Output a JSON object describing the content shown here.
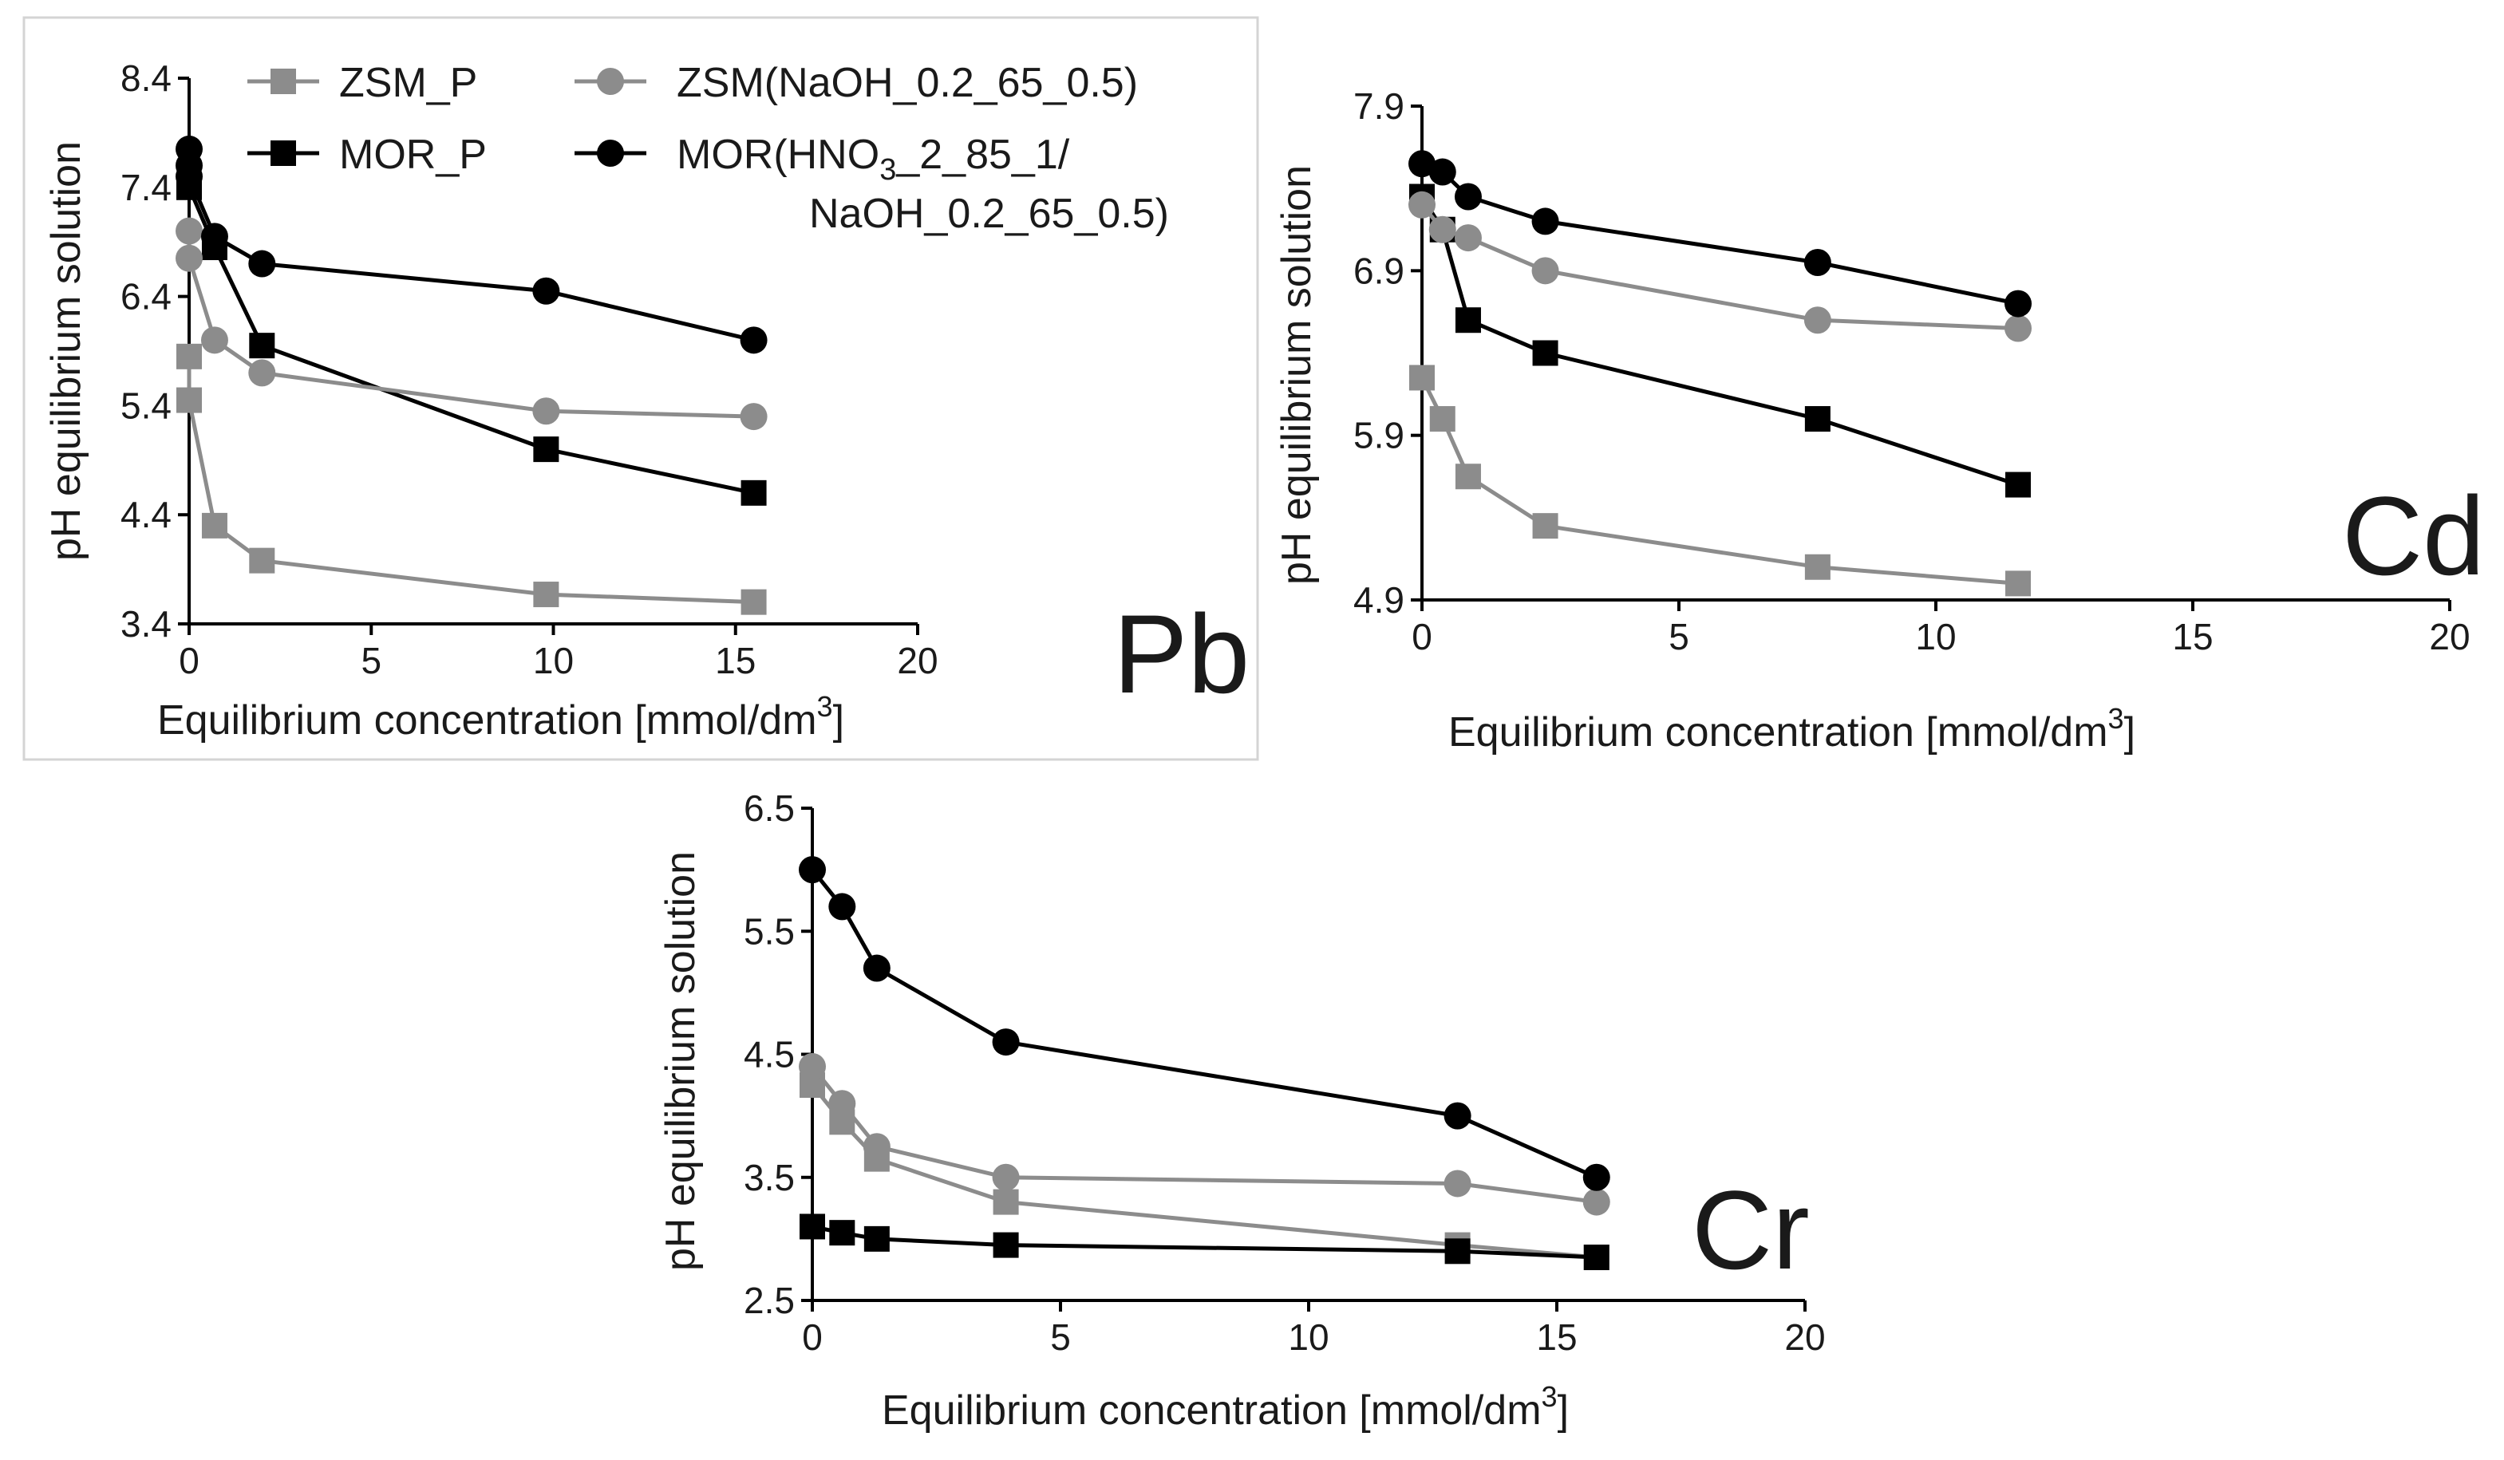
{
  "series_styles": [
    {
      "key": "zsm_p",
      "name": "ZSM_P",
      "color": "#8c8c8c",
      "marker": "square"
    },
    {
      "key": "mor_p",
      "name": "MOR_P",
      "color": "#000000",
      "marker": "square"
    },
    {
      "key": "zsm_naoh",
      "name": "ZSM(NaOH_0.2_65_0.5)",
      "color": "#8c8c8c",
      "marker": "circle"
    },
    {
      "key": "mor_hno3",
      "name": "MOR(HNO3_2_85_1/NaOH_0.2_65_0.5)",
      "color": "#000000",
      "marker": "circle"
    }
  ],
  "legend": {
    "zsm_p": "ZSM_P",
    "mor_p": "MOR_P",
    "zsm_naoh": "ZSM(NaOH_0.2_65_0.5)",
    "mor_hno3_prefix": "MOR(HNO",
    "mor_hno3_sub": "3",
    "mor_hno3_rest": "_2_85_1/",
    "mor_hno3_line2": "NaOH_0.2_65_0.5)"
  },
  "chart_data": [
    {
      "type": "line",
      "metal_label": "Pb",
      "xlabel": "Equilibrium concentration [mmol/dm",
      "xlabel_sup": "3",
      "xlabel_end": "]",
      "ylabel": "pH equilibrium solution",
      "xlim": [
        0,
        20
      ],
      "ylim": [
        3.4,
        8.4
      ],
      "xticks": [
        "0",
        "5",
        "10",
        "15",
        "20"
      ],
      "yticks": [
        "3.4",
        "4.4",
        "5.4",
        "6.4",
        "7.4",
        "8.4"
      ],
      "series": [
        {
          "key": "zsm_p",
          "x": [
            0,
            0,
            0.7,
            2.0,
            9.8,
            15.5
          ],
          "y": [
            5.85,
            5.45,
            4.3,
            3.98,
            3.67,
            3.6
          ]
        },
        {
          "key": "mor_p",
          "x": [
            0,
            0.7,
            2.0,
            9.8,
            15.5
          ],
          "y": [
            7.4,
            6.85,
            5.95,
            5.0,
            4.6
          ]
        },
        {
          "key": "zsm_naoh",
          "x": [
            0,
            0,
            0.7,
            2.0,
            9.8,
            15.5
          ],
          "y": [
            7.0,
            6.75,
            6.0,
            5.7,
            5.35,
            5.3
          ]
        },
        {
          "key": "mor_hno3",
          "x": [
            0,
            0,
            0,
            0.7,
            2.0,
            9.8,
            15.5
          ],
          "y": [
            7.75,
            7.6,
            7.5,
            6.95,
            6.7,
            6.45,
            6.0
          ]
        }
      ]
    },
    {
      "type": "line",
      "metal_label": "Cd",
      "xlabel": "Equilibrium concentration [mmol/dm",
      "xlabel_sup": "3",
      "xlabel_end": "]",
      "ylabel": "pH equilibrium solution",
      "xlim": [
        0,
        20
      ],
      "ylim": [
        4.9,
        7.9
      ],
      "xticks": [
        "0",
        "5",
        "10",
        "15",
        "20"
      ],
      "yticks": [
        "4.9",
        "5.9",
        "6.9",
        "7.9"
      ],
      "series": [
        {
          "key": "zsm_p",
          "x": [
            0,
            0.4,
            0.9,
            2.4,
            7.7,
            11.6
          ],
          "y": [
            6.25,
            6.0,
            5.65,
            5.35,
            5.1,
            5.0
          ]
        },
        {
          "key": "mor_p",
          "x": [
            0,
            0.4,
            0.9,
            2.4,
            7.7,
            11.6
          ],
          "y": [
            7.35,
            7.15,
            6.6,
            6.4,
            6.0,
            5.6
          ]
        },
        {
          "key": "zsm_naoh",
          "x": [
            0,
            0.4,
            0.9,
            2.4,
            7.7,
            11.6
          ],
          "y": [
            7.3,
            7.15,
            7.1,
            6.9,
            6.6,
            6.55
          ]
        },
        {
          "key": "mor_hno3",
          "x": [
            0,
            0.4,
            0.9,
            2.4,
            7.7,
            11.6
          ],
          "y": [
            7.55,
            7.5,
            7.35,
            7.2,
            6.95,
            6.7
          ]
        }
      ]
    },
    {
      "type": "line",
      "metal_label": "Cr",
      "xlabel": "Equilibrium concentration [mmol/dm",
      "xlabel_sup": "3",
      "xlabel_end": "]",
      "ylabel": "pH equilibrium solution",
      "xlim": [
        0,
        20
      ],
      "ylim": [
        2.5,
        6.5
      ],
      "xticks": [
        "0",
        "5",
        "10",
        "15",
        "20"
      ],
      "yticks": [
        "2.5",
        "3.5",
        "4.5",
        "5.5",
        "6.5"
      ],
      "series": [
        {
          "key": "zsm_p",
          "x": [
            0,
            0.6,
            1.3,
            3.9,
            13.0,
            15.8
          ],
          "y": [
            4.25,
            3.95,
            3.65,
            3.3,
            2.95,
            2.85
          ]
        },
        {
          "key": "mor_p",
          "x": [
            0,
            0.6,
            1.3,
            3.9,
            13.0,
            15.8
          ],
          "y": [
            3.1,
            3.05,
            3.0,
            2.95,
            2.9,
            2.85
          ]
        },
        {
          "key": "zsm_naoh",
          "x": [
            0,
            0.6,
            1.3,
            3.9,
            13.0,
            15.8
          ],
          "y": [
            4.4,
            4.1,
            3.75,
            3.5,
            3.45,
            3.3
          ]
        },
        {
          "key": "mor_hno3",
          "x": [
            0,
            0.6,
            1.3,
            3.9,
            13.0,
            15.8
          ],
          "y": [
            6.0,
            5.7,
            5.2,
            4.6,
            4.0,
            3.5
          ]
        }
      ]
    }
  ]
}
